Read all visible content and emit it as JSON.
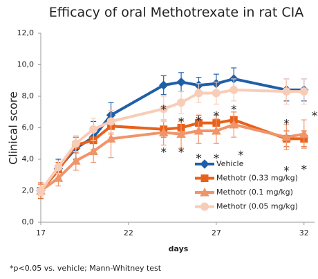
{
  "chart_data": {
    "type": "line",
    "title": "Efficacy of oral Methotrexate in rat CIA",
    "x_label": "days",
    "y_label": "Clinical score",
    "footnote": "*p<0.05 vs. vehicle; Mann-Whitney test",
    "x": [
      17,
      18,
      19,
      20,
      21,
      24,
      25,
      26,
      27,
      28,
      31,
      32
    ],
    "xlim": [
      17,
      32.6
    ],
    "xticks": [
      17,
      22,
      27,
      32
    ],
    "ylim": [
      0,
      12
    ],
    "yticks": [
      {
        "value": 0,
        "label": "0,0"
      },
      {
        "value": 2,
        "label": "2,0"
      },
      {
        "value": 4,
        "label": "4,0"
      },
      {
        "value": 6,
        "label": "6,0"
      },
      {
        "value": 8,
        "label": "8,0"
      },
      {
        "value": 10,
        "label": "10,0"
      },
      {
        "value": 12,
        "label": "12,0"
      }
    ],
    "grid": false,
    "legend": "lower right",
    "series": [
      {
        "name": "Vehicle",
        "color": "#1f5fa8",
        "marker": "diamond",
        "values": [
          2.0,
          3.4,
          4.7,
          5.4,
          6.8,
          8.7,
          8.9,
          8.7,
          8.8,
          9.1,
          8.4,
          8.4
        ],
        "errors": [
          0.5,
          0.6,
          0.7,
          1.0,
          0.8,
          0.6,
          0.6,
          0.5,
          0.6,
          0.7,
          0.7,
          0.7
        ]
      },
      {
        "name": "Methotr (0.33 mg/kg)",
        "color": "#e8611a",
        "marker": "square",
        "values": [
          2.0,
          3.3,
          4.9,
          5.2,
          6.1,
          5.9,
          6.0,
          6.3,
          6.3,
          6.5,
          5.3,
          5.3
        ],
        "errors": [
          0.5,
          0.5,
          0.5,
          0.6,
          0.5,
          0.5,
          0.5,
          0.5,
          0.5,
          0.5,
          0.5,
          0.5
        ]
      },
      {
        "name": "Methotr (0.1 mg/kg)",
        "color": "#f0946a",
        "marker": "triangle",
        "values": [
          2.0,
          2.8,
          3.9,
          4.5,
          5.3,
          5.7,
          5.6,
          5.8,
          5.8,
          6.2,
          5.4,
          5.6
        ],
        "errors": [
          0.4,
          0.5,
          0.6,
          0.7,
          1.2,
          0.8,
          0.9,
          0.8,
          0.8,
          0.8,
          0.8,
          0.9
        ]
      },
      {
        "name": "Methotr (0.05 mg/kg)",
        "color": "#f8cdb8",
        "marker": "circle",
        "values": [
          2.0,
          3.5,
          5.0,
          5.9,
          6.4,
          7.2,
          7.6,
          8.2,
          8.2,
          8.4,
          8.3,
          8.3
        ],
        "errors": [
          0.3,
          0.4,
          0.5,
          0.7,
          0.7,
          0.8,
          0.7,
          0.6,
          0.7,
          0.7,
          0.8,
          0.8
        ]
      }
    ],
    "annotations": [
      {
        "text": "*",
        "x": 24,
        "y": 7.3
      },
      {
        "text": "*",
        "x": 24,
        "y": 4.6
      },
      {
        "text": "*",
        "x": 25,
        "y": 6.5
      },
      {
        "text": "*",
        "x": 25,
        "y": 4.6
      },
      {
        "text": "*",
        "x": 26,
        "y": 6.6
      },
      {
        "text": "*",
        "x": 26,
        "y": 4.2
      },
      {
        "text": "*",
        "x": 27,
        "y": 6.9
      },
      {
        "text": "*",
        "x": 27,
        "y": 4.2
      },
      {
        "text": "*",
        "x": 28,
        "y": 7.3
      },
      {
        "text": "*",
        "x": 28.4,
        "y": 4.4
      },
      {
        "text": "*",
        "x": 31,
        "y": 6.4
      },
      {
        "text": "*",
        "x": 31,
        "y": 3.4
      },
      {
        "text": "*",
        "x": 32.6,
        "y": 6.9
      },
      {
        "text": "*",
        "x": 32,
        "y": 3.5
      }
    ]
  }
}
